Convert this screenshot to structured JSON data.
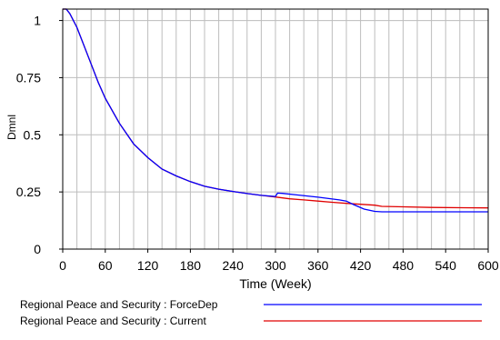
{
  "chart_data": {
    "type": "line",
    "title": "",
    "xlabel": "Time (Week)",
    "ylabel": "Dmnl",
    "xlim": [
      0,
      600
    ],
    "ylim": [
      0,
      1.05
    ],
    "x_ticks": [
      "0",
      "60",
      "120",
      "180",
      "240",
      "300",
      "360",
      "420",
      "480",
      "540",
      "600"
    ],
    "y_ticks": [
      "0",
      "0.25",
      "0.5",
      "0.75",
      "1"
    ],
    "grid": true,
    "legend_position": "bottom",
    "series": [
      {
        "name": "Regional Peace and Security : ForceDep",
        "color": "#0000ff",
        "points": [
          [
            0,
            1.05
          ],
          [
            5,
            1.05
          ],
          [
            10,
            1.03
          ],
          [
            20,
            0.97
          ],
          [
            30,
            0.89
          ],
          [
            40,
            0.81
          ],
          [
            50,
            0.73
          ],
          [
            60,
            0.66
          ],
          [
            80,
            0.55
          ],
          [
            100,
            0.46
          ],
          [
            120,
            0.4
          ],
          [
            140,
            0.35
          ],
          [
            160,
            0.32
          ],
          [
            180,
            0.295
          ],
          [
            200,
            0.275
          ],
          [
            220,
            0.262
          ],
          [
            240,
            0.252
          ],
          [
            260,
            0.243
          ],
          [
            280,
            0.235
          ],
          [
            300,
            0.23
          ],
          [
            303,
            0.245
          ],
          [
            310,
            0.244
          ],
          [
            330,
            0.237
          ],
          [
            360,
            0.227
          ],
          [
            390,
            0.215
          ],
          [
            400,
            0.21
          ],
          [
            410,
            0.195
          ],
          [
            425,
            0.175
          ],
          [
            440,
            0.165
          ],
          [
            450,
            0.163
          ],
          [
            480,
            0.163
          ],
          [
            520,
            0.163
          ],
          [
            600,
            0.163
          ]
        ]
      },
      {
        "name": "Regional Peace and Security : Current",
        "color": "#e00000",
        "points": [
          [
            0,
            1.05
          ],
          [
            5,
            1.05
          ],
          [
            10,
            1.03
          ],
          [
            20,
            0.97
          ],
          [
            30,
            0.89
          ],
          [
            40,
            0.81
          ],
          [
            50,
            0.73
          ],
          [
            60,
            0.66
          ],
          [
            80,
            0.55
          ],
          [
            100,
            0.46
          ],
          [
            120,
            0.4
          ],
          [
            140,
            0.35
          ],
          [
            160,
            0.32
          ],
          [
            180,
            0.295
          ],
          [
            200,
            0.275
          ],
          [
            220,
            0.262
          ],
          [
            240,
            0.252
          ],
          [
            260,
            0.243
          ],
          [
            280,
            0.235
          ],
          [
            300,
            0.228
          ],
          [
            320,
            0.22
          ],
          [
            340,
            0.215
          ],
          [
            360,
            0.21
          ],
          [
            380,
            0.205
          ],
          [
            400,
            0.2
          ],
          [
            420,
            0.196
          ],
          [
            440,
            0.192
          ],
          [
            450,
            0.187
          ],
          [
            480,
            0.185
          ],
          [
            520,
            0.182
          ],
          [
            600,
            0.18
          ]
        ]
      }
    ]
  }
}
